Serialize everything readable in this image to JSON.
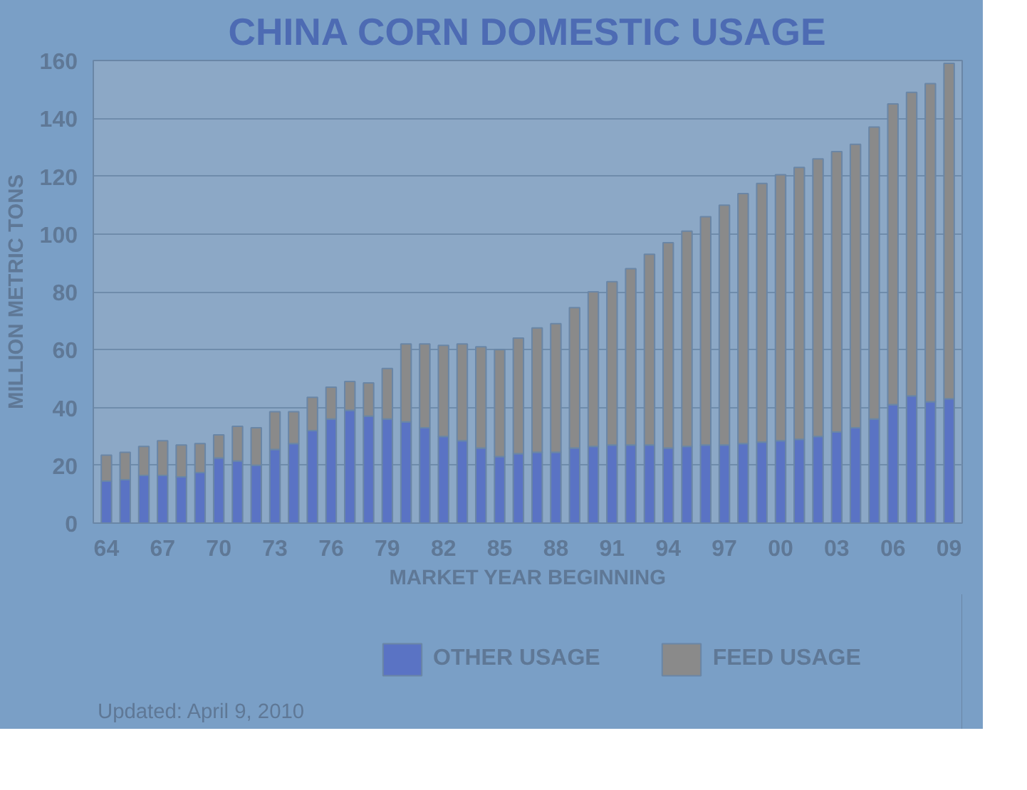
{
  "chart_data": {
    "type": "bar",
    "title": "CHINA CORN DOMESTIC USAGE",
    "xlabel": "MARKET YEAR BEGINNING",
    "ylabel": "MILLION METRIC TONS",
    "categories": [
      "64",
      null,
      null,
      "67",
      null,
      null,
      "70",
      null,
      null,
      "73",
      null,
      null,
      "76",
      null,
      null,
      "79",
      null,
      null,
      "82",
      null,
      null,
      "85",
      null,
      null,
      "88",
      null,
      null,
      "91",
      null,
      null,
      "94",
      null,
      null,
      "97",
      null,
      null,
      "00",
      null,
      null,
      "03",
      null,
      null,
      "06",
      null,
      null,
      "09"
    ],
    "stacked": true,
    "series": [
      {
        "name": "OTHER USAGE",
        "color": "#5a73c4",
        "values": [
          14.5,
          15,
          16.5,
          16.5,
          16,
          17.5,
          22.5,
          21.5,
          20,
          25.5,
          27.5,
          32,
          36,
          39,
          37,
          36,
          35,
          33,
          30,
          28.5,
          26,
          23,
          24,
          24.5,
          24.5,
          26,
          26.5,
          27,
          27,
          27,
          26,
          26.5,
          27,
          27,
          27.5,
          28,
          28.5,
          29,
          30,
          31.5,
          33,
          36,
          41,
          44,
          42,
          43
        ]
      },
      {
        "name": "FEED USAGE",
        "color": "#8a8a8a",
        "values": [
          9,
          9.5,
          10,
          12,
          11,
          10,
          8,
          12,
          13,
          13,
          11,
          11.5,
          11,
          10,
          11.5,
          17.5,
          27,
          29,
          31.5,
          33.5,
          35,
          37,
          40,
          43,
          44.5,
          48.5,
          53.5,
          56.5,
          61,
          66,
          71,
          74.5,
          79,
          83,
          86.5,
          89.5,
          92,
          94,
          96,
          97,
          98,
          101,
          104,
          105,
          110,
          116
        ]
      }
    ],
    "ylim": [
      0,
      160
    ],
    "yticks": [
      0,
      20,
      40,
      60,
      80,
      100,
      120,
      140,
      160
    ],
    "grid": "y",
    "legend": "bottom",
    "annotations": [
      "Updated: April 9, 2010"
    ]
  }
}
